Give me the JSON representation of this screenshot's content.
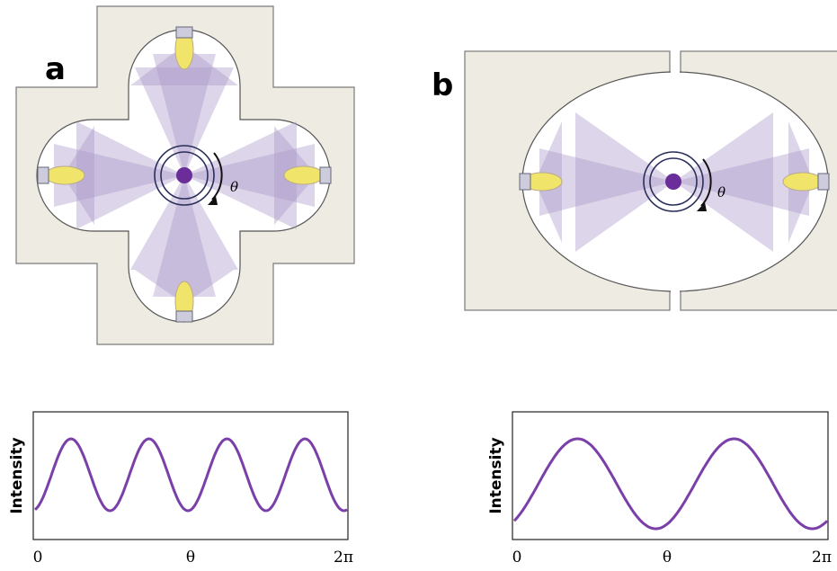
{
  "panel_a": {
    "label": "a",
    "theta": "θ",
    "plot": {
      "y_label": "Intensity",
      "x_start": "0",
      "x_mid": "θ",
      "x_end": "2π"
    }
  },
  "panel_b": {
    "label": "b",
    "theta": "θ",
    "plot": {
      "y_label": "Intensity",
      "x_start": "0",
      "x_mid": "θ",
      "x_end": "2π"
    }
  }
}
